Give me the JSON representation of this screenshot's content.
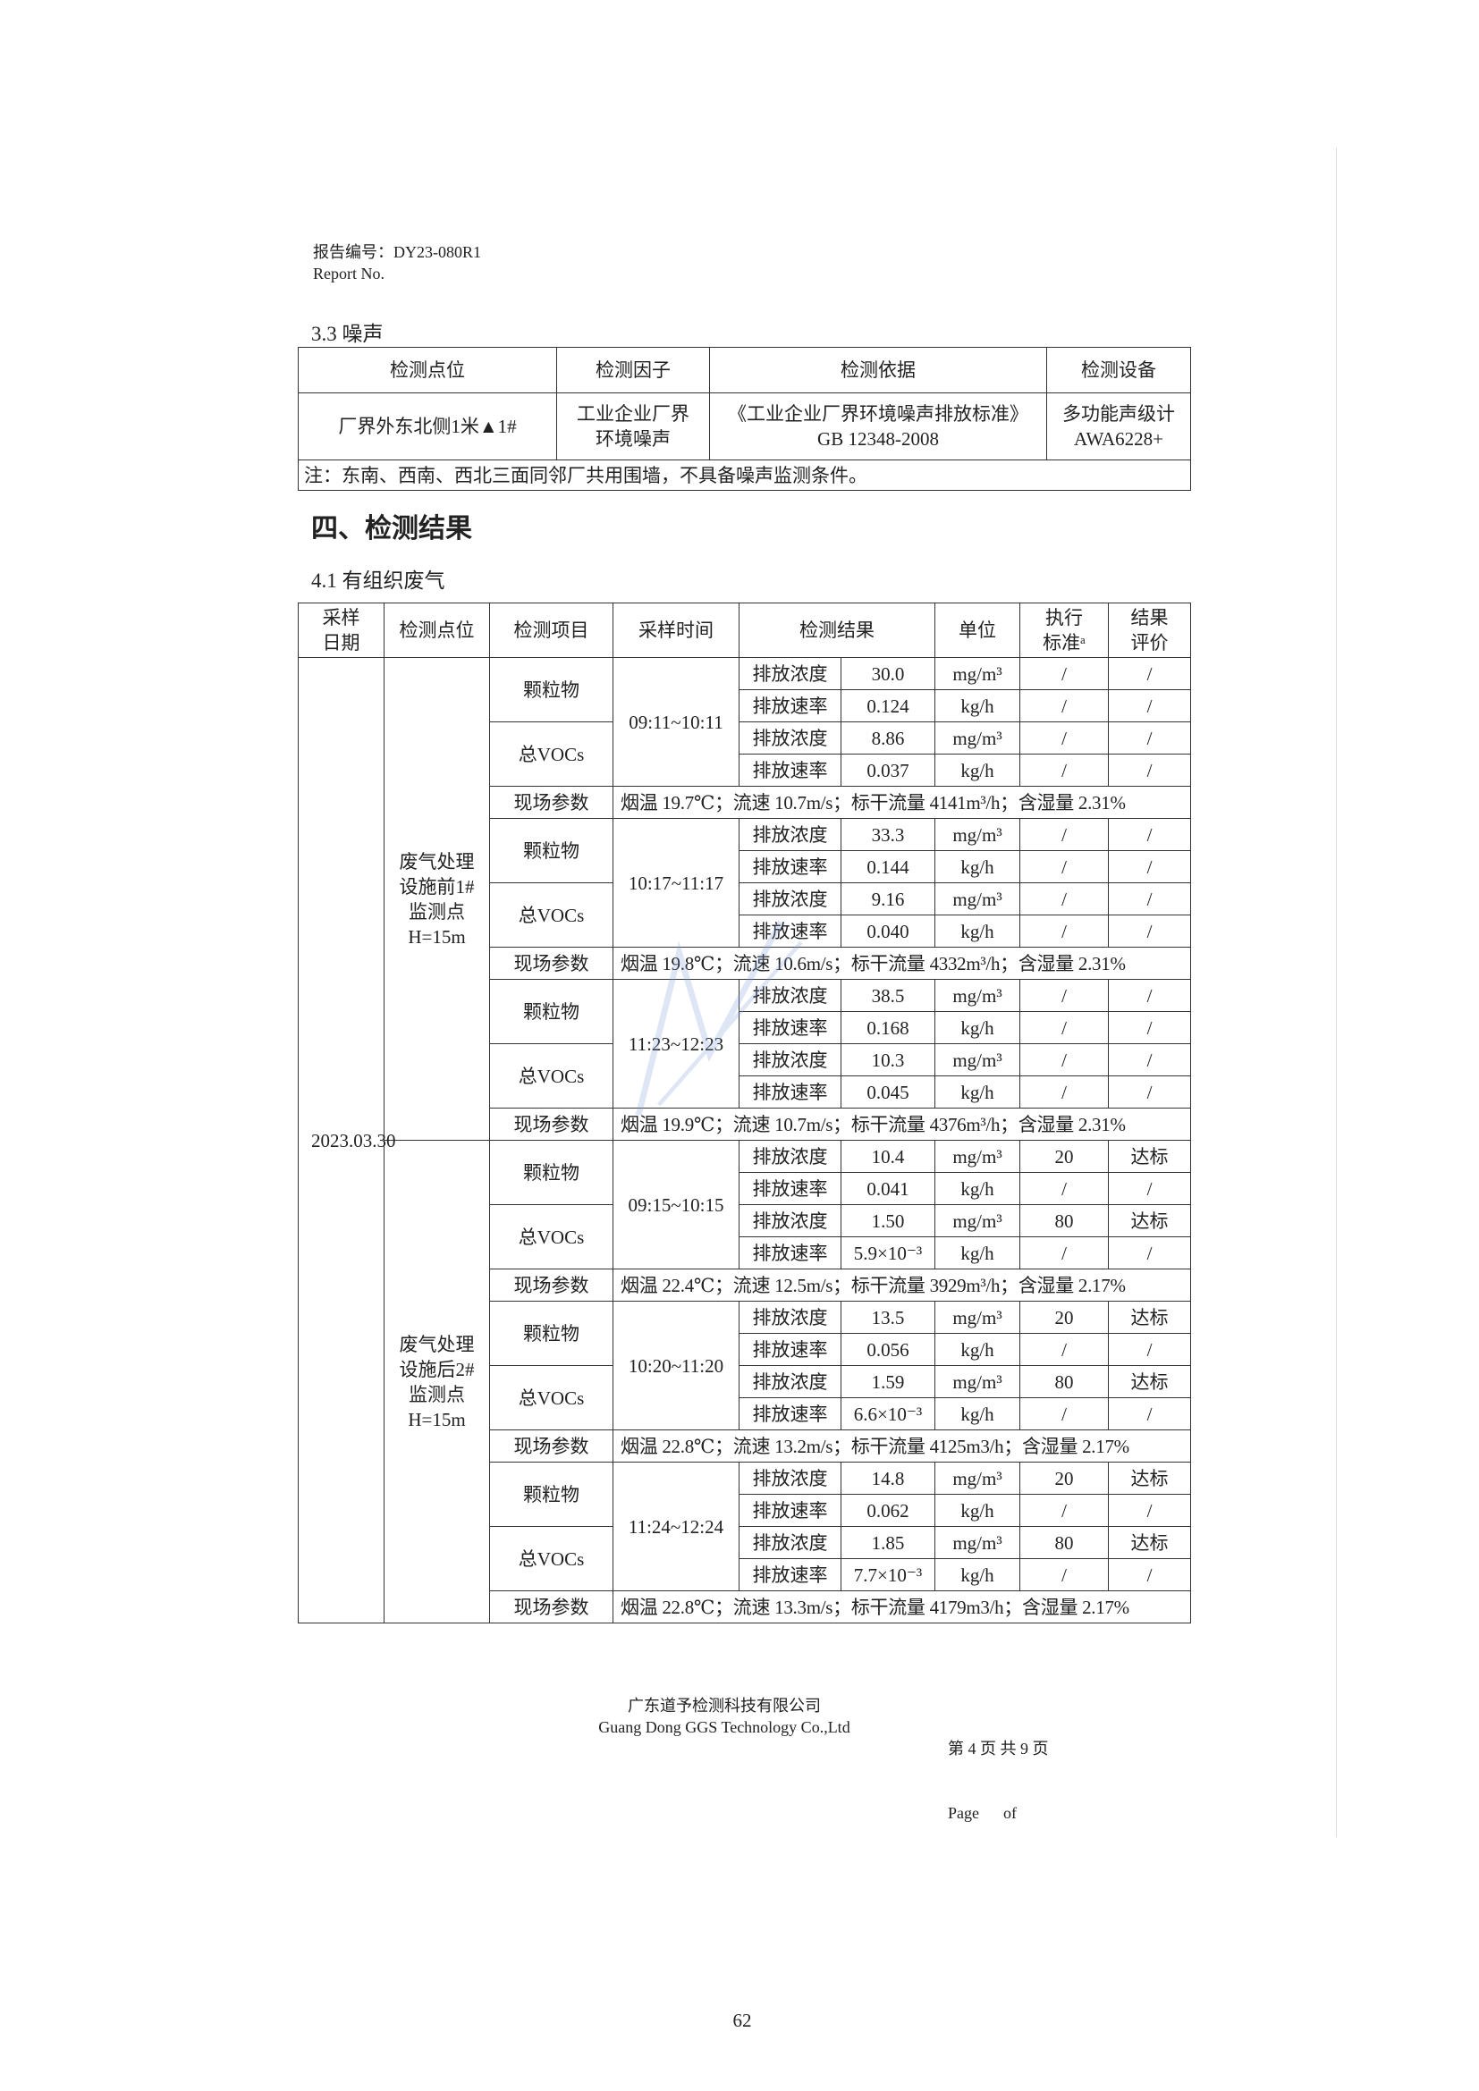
{
  "header": {
    "report_no_label_cn": "报告编号：DY23-080R1",
    "report_no_label_en": "Report No."
  },
  "noise_section": {
    "title": "3.3 噪声",
    "columns": [
      "检测点位",
      "检测因子",
      "检测依据",
      "检测设备"
    ],
    "row": {
      "location": "厂界外东北侧1米▲1#",
      "factor_line1": "工业企业厂界",
      "factor_line2": "环境噪声",
      "basis_line1": "《工业企业厂界环境噪声排放标准》",
      "basis_line2": "GB 12348-2008",
      "device_line1": "多功能声级计",
      "device_line2": "AWA6228+"
    },
    "note": "注：东南、西南、西北三面同邻厂共用围墙，不具备噪声监测条件。"
  },
  "results_heading": "四、检测结果",
  "results_section": {
    "title": "4.1 有组织废气",
    "columns": [
      "采样日期",
      "检测点位",
      "检测项目",
      "采样时间",
      "检测结果",
      "单位",
      "执行标准ᵃ",
      "结果评价"
    ],
    "date": "2023.03.30",
    "params_label": "现场参数",
    "locations": [
      {
        "name": "废气处理设施前1#监测点H=15m",
        "samples": [
          {
            "time": "09:11~10:11",
            "rows": [
              {
                "item": "颗粒物",
                "label": "排放浓度",
                "value": "30.0",
                "unit": "mg/m³",
                "std": "/",
                "eval": "/"
              },
              {
                "item": "颗粒物",
                "label": "排放速率",
                "value": "0.124",
                "unit": "kg/h",
                "std": "/",
                "eval": "/"
              },
              {
                "item": "总VOCs",
                "label": "排放浓度",
                "value": "8.86",
                "unit": "mg/m³",
                "std": "/",
                "eval": "/"
              },
              {
                "item": "总VOCs",
                "label": "排放速率",
                "value": "0.037",
                "unit": "kg/h",
                "std": "/",
                "eval": "/"
              }
            ],
            "params": "烟温 19.7℃；流速  10.7m/s；标干流量 4141m³/h；含湿量 2.31%"
          },
          {
            "time": "10:17~11:17",
            "rows": [
              {
                "item": "颗粒物",
                "label": "排放浓度",
                "value": "33.3",
                "unit": "mg/m³",
                "std": "/",
                "eval": "/"
              },
              {
                "item": "颗粒物",
                "label": "排放速率",
                "value": "0.144",
                "unit": "kg/h",
                "std": "/",
                "eval": "/"
              },
              {
                "item": "总VOCs",
                "label": "排放浓度",
                "value": "9.16",
                "unit": "mg/m³",
                "std": "/",
                "eval": "/"
              },
              {
                "item": "总VOCs",
                "label": "排放速率",
                "value": "0.040",
                "unit": "kg/h",
                "std": "/",
                "eval": "/"
              }
            ],
            "params": "烟温 19.8℃；流速  10.6m/s；标干流量 4332m³/h；含湿量 2.31%"
          },
          {
            "time": "11:23~12:23",
            "rows": [
              {
                "item": "颗粒物",
                "label": "排放浓度",
                "value": "38.5",
                "unit": "mg/m³",
                "std": "/",
                "eval": "/"
              },
              {
                "item": "颗粒物",
                "label": "排放速率",
                "value": "0.168",
                "unit": "kg/h",
                "std": "/",
                "eval": "/"
              },
              {
                "item": "总VOCs",
                "label": "排放浓度",
                "value": "10.3",
                "unit": "mg/m³",
                "std": "/",
                "eval": "/"
              },
              {
                "item": "总VOCs",
                "label": "排放速率",
                "value": "0.045",
                "unit": "kg/h",
                "std": "/",
                "eval": "/"
              }
            ],
            "params": "烟温 19.9℃；流速  10.7m/s；标干流量 4376m³/h；含湿量 2.31%"
          }
        ]
      },
      {
        "name": "废气处理设施后2#监测点H=15m",
        "samples": [
          {
            "time": "09:15~10:15",
            "rows": [
              {
                "item": "颗粒物",
                "label": "排放浓度",
                "value": "10.4",
                "unit": "mg/m³",
                "std": "20",
                "eval": "达标"
              },
              {
                "item": "颗粒物",
                "label": "排放速率",
                "value": "0.041",
                "unit": "kg/h",
                "std": "/",
                "eval": "/"
              },
              {
                "item": "总VOCs",
                "label": "排放浓度",
                "value": "1.50",
                "unit": "mg/m³",
                "std": "80",
                "eval": "达标"
              },
              {
                "item": "总VOCs",
                "label": "排放速率",
                "value": "5.9×10⁻³",
                "unit": "kg/h",
                "std": "/",
                "eval": "/"
              }
            ],
            "params": "烟温 22.4℃；流速  12.5m/s；标干流量 3929m³/h；含湿量 2.17%"
          },
          {
            "time": "10:20~11:20",
            "rows": [
              {
                "item": "颗粒物",
                "label": "排放浓度",
                "value": "13.5",
                "unit": "mg/m³",
                "std": "20",
                "eval": "达标"
              },
              {
                "item": "颗粒物",
                "label": "排放速率",
                "value": "0.056",
                "unit": "kg/h",
                "std": "/",
                "eval": "/"
              },
              {
                "item": "总VOCs",
                "label": "排放浓度",
                "value": "1.59",
                "unit": "mg/m³",
                "std": "80",
                "eval": "达标"
              },
              {
                "item": "总VOCs",
                "label": "排放速率",
                "value": "6.6×10⁻³",
                "unit": "kg/h",
                "std": "/",
                "eval": "/"
              }
            ],
            "params": "烟温 22.8℃；流速  13.2m/s；标干流量 4125m3/h；含湿量 2.17%"
          },
          {
            "time": "11:24~12:24",
            "rows": [
              {
                "item": "颗粒物",
                "label": "排放浓度",
                "value": "14.8",
                "unit": "mg/m³",
                "std": "20",
                "eval": "达标"
              },
              {
                "item": "颗粒物",
                "label": "排放速率",
                "value": "0.062",
                "unit": "kg/h",
                "std": "/",
                "eval": "/"
              },
              {
                "item": "总VOCs",
                "label": "排放浓度",
                "value": "1.85",
                "unit": "mg/m³",
                "std": "80",
                "eval": "达标"
              },
              {
                "item": "总VOCs",
                "label": "排放速率",
                "value": "7.7×10⁻³",
                "unit": "kg/h",
                "std": "/",
                "eval": "/"
              }
            ],
            "params": "烟温 22.8℃；流速  13.3m/s；标干流量 4179m3/h；含湿量 2.17%"
          }
        ]
      }
    ]
  },
  "footer": {
    "company_cn": "广东道予检测科技有限公司",
    "company_en": "Guang Dong GGS Technology Co.,Ltd",
    "page_cn": "第 4 页 共 9 页",
    "page_en": "Page      of"
  },
  "page_number": "62"
}
